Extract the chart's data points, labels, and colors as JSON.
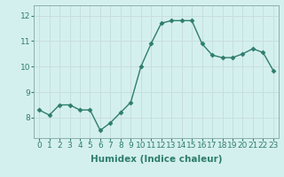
{
  "x": [
    0,
    1,
    2,
    3,
    4,
    5,
    6,
    7,
    8,
    9,
    10,
    11,
    12,
    13,
    14,
    15,
    16,
    17,
    18,
    19,
    20,
    21,
    22,
    23
  ],
  "y": [
    8.3,
    8.1,
    8.5,
    8.5,
    8.3,
    8.3,
    7.5,
    7.8,
    8.2,
    8.6,
    10.0,
    10.9,
    11.7,
    11.8,
    11.8,
    11.8,
    10.9,
    10.45,
    10.35,
    10.35,
    10.5,
    10.7,
    10.55,
    9.85
  ],
  "line_color": "#2e7d6e",
  "marker": "D",
  "marker_size": 2.5,
  "bg_color": "#d4f0ee",
  "grid_color": "#c8dede",
  "xlabel": "Humidex (Indice chaleur)",
  "ylim": [
    7.2,
    12.4
  ],
  "xlim": [
    -0.5,
    23.5
  ],
  "yticks": [
    8,
    9,
    10,
    11,
    12
  ],
  "xticks": [
    0,
    1,
    2,
    3,
    4,
    5,
    6,
    7,
    8,
    9,
    10,
    11,
    12,
    13,
    14,
    15,
    16,
    17,
    18,
    19,
    20,
    21,
    22,
    23
  ],
  "xtick_labels": [
    "0",
    "1",
    "2",
    "3",
    "4",
    "5",
    "6",
    "7",
    "8",
    "9",
    "10",
    "11",
    "12",
    "13",
    "14",
    "15",
    "16",
    "17",
    "18",
    "19",
    "20",
    "21",
    "22",
    "23"
  ],
  "label_fontsize": 7.5,
  "tick_fontsize": 6.5
}
